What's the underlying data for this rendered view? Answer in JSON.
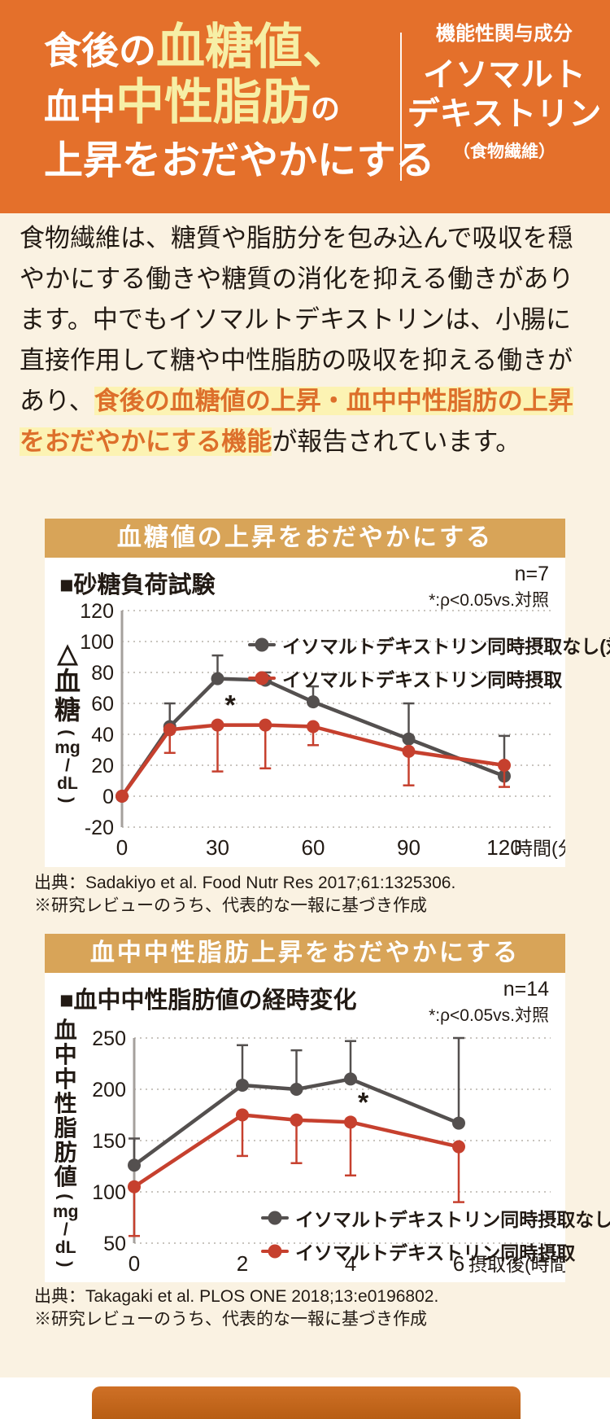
{
  "colors": {
    "header_bg": "#e4702b",
    "accent_yellow": "#f6efa6",
    "body_bg": "#faf2e2",
    "banner_bg": "#d8a458",
    "highlight_bg": "#fcf3b3",
    "highlight_text": "#dd6f2b",
    "series_control": "#54504f",
    "series_treatment": "#c6402e"
  },
  "header": {
    "line1_a": "食後の",
    "line1_b": "血糖値、",
    "line2_a": "血中",
    "line2_b": "中性脂肪",
    "line2_c": "の",
    "line3": "上昇をおだやかにする",
    "ingredient_label": "機能性関与成分",
    "ingredient_name_line1": "イソマルト",
    "ingredient_name_line2": "デキストリン",
    "ingredient_note": "（食物繊維）"
  },
  "intro": {
    "text_before": "食物繊維は、糖質や脂肪分を包み込んで吸収を穏やかにする働きや糖質の消化を抑える働きがあります。中でもイソマルトデキストリンは、小腸に直接作用して糖や中性脂肪の吸収を抑える働きがあり、",
    "text_highlight": "食後の血糖値の上昇・血中中性脂肪の上昇をおだやかにする機能",
    "text_after": "が報告されています。"
  },
  "chart_data": [
    {
      "type": "line",
      "banner": "血糖値の上昇をおだやかにする",
      "title": "■砂糖負荷試験",
      "n_label": "n=7",
      "sig_label": "*:ρ<0.05vs.対照",
      "ylabel": "△血糖(mg/dL)",
      "ylabel_tokens": [
        "△",
        "血",
        "糖",
        "(",
        "mg",
        "/",
        "dL",
        ")"
      ],
      "xlabel": "時間(分)",
      "x": [
        0,
        15,
        30,
        45,
        60,
        90,
        120
      ],
      "x_ticks": [
        0,
        30,
        60,
        90,
        120
      ],
      "y_ticks": [
        120,
        100,
        80,
        60,
        40,
        20,
        0,
        -20
      ],
      "ylim": [
        -20,
        120
      ],
      "xlim": [
        0,
        120
      ],
      "grid": true,
      "legend_position": "top-center",
      "series": [
        {
          "name": "イソマルトデキストリン同時摂取なし(対照)",
          "color": "#54504f",
          "values": [
            0,
            45,
            76,
            75,
            61,
            37,
            13
          ],
          "err_high": [
            null,
            60,
            91,
            80,
            71,
            60,
            39
          ],
          "err_low": [
            null,
            null,
            null,
            null,
            null,
            null,
            null
          ],
          "star_index": null
        },
        {
          "name": "イソマルトデキストリン同時摂取",
          "color": "#c6402e",
          "values": [
            0,
            43,
            46,
            46,
            45,
            29,
            20
          ],
          "err_high": [
            null,
            null,
            null,
            null,
            null,
            null,
            null
          ],
          "err_low": [
            null,
            28,
            16,
            18,
            33,
            7,
            6
          ],
          "star_index": 2
        }
      ],
      "star_label": "*",
      "source": "出典：Sadakiyo et al. Food Nutr Res 2017;61:1325306.",
      "note": "※研究レビューのうち、代表的な一報に基づき作成"
    },
    {
      "type": "line",
      "banner": "血中中性脂肪上昇をおだやかにする",
      "title": "■血中中性脂肪値の経時変化",
      "n_label": "n=14",
      "sig_label": "*:ρ<0.05vs.対照",
      "ylabel": "血中中性脂肪値(mg/dL)",
      "ylabel_tokens": [
        "血",
        "中",
        "中",
        "性",
        "脂",
        "肪",
        "値",
        "(",
        "mg",
        "/",
        "dL",
        ")"
      ],
      "xlabel": "摂取後(時間)",
      "x": [
        0,
        2,
        3,
        4,
        6
      ],
      "x_ticks": [
        0,
        2,
        4,
        6
      ],
      "y_ticks": [
        250,
        200,
        150,
        100,
        50
      ],
      "ylim": [
        50,
        250
      ],
      "xlim": [
        0,
        6
      ],
      "grid": true,
      "legend_position": "bottom-center",
      "series": [
        {
          "name": "イソマルトデキストリン同時摂取なし(対照)",
          "color": "#54504f",
          "values": [
            126,
            204,
            200,
            210,
            167
          ],
          "err_high": [
            152,
            243,
            238,
            247,
            250
          ],
          "err_low": [
            null,
            null,
            null,
            null,
            null
          ],
          "star_index": null
        },
        {
          "name": "イソマルトデキストリン同時摂取",
          "color": "#c6402e",
          "values": [
            105,
            175,
            170,
            168,
            144
          ],
          "err_high": [
            null,
            null,
            null,
            null,
            null
          ],
          "err_low": [
            57,
            135,
            128,
            116,
            90
          ],
          "star_index": 3
        }
      ],
      "star_label": "*",
      "source": "出典：Takagaki et al. PLOS ONE 2018;13:e0196802.",
      "note": "※研究レビューのうち、代表的な一報に基づき作成"
    }
  ]
}
